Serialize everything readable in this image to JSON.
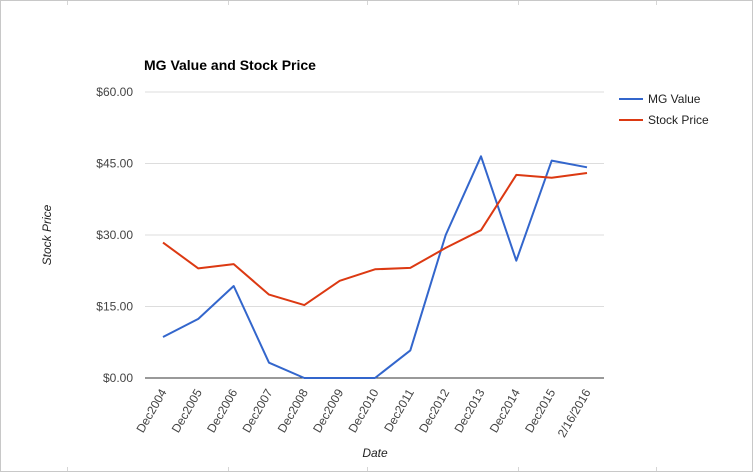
{
  "chart_data": {
    "type": "line",
    "title": "MG Value and Stock Price",
    "xlabel": "Date",
    "ylabel": "Stock Price",
    "categories": [
      "Dec2004",
      "Dec2005",
      "Dec2006",
      "Dec2007",
      "Dec2008",
      "Dec2009",
      "Dec2010",
      "Dec2011",
      "Dec2012",
      "Dec2013",
      "Dec2014",
      "Dec2015",
      "2/16/2016"
    ],
    "yticks": [
      "$0.00",
      "$15.00",
      "$30.00",
      "$45.00",
      "$60.00"
    ],
    "ylim": [
      0,
      60
    ],
    "grid": true,
    "legend_position": "right",
    "series": [
      {
        "name": "MG Value",
        "color": "#3366cc",
        "values": [
          8.6,
          12.4,
          19.3,
          3.2,
          0.0,
          0.0,
          0.0,
          5.8,
          30.0,
          46.5,
          24.6,
          45.6,
          44.2
        ]
      },
      {
        "name": "Stock Price",
        "color": "#dc3912",
        "values": [
          28.4,
          23.0,
          23.9,
          17.5,
          15.3,
          20.4,
          22.8,
          23.1,
          27.3,
          31.0,
          42.6,
          42.0,
          43.0
        ]
      }
    ]
  }
}
